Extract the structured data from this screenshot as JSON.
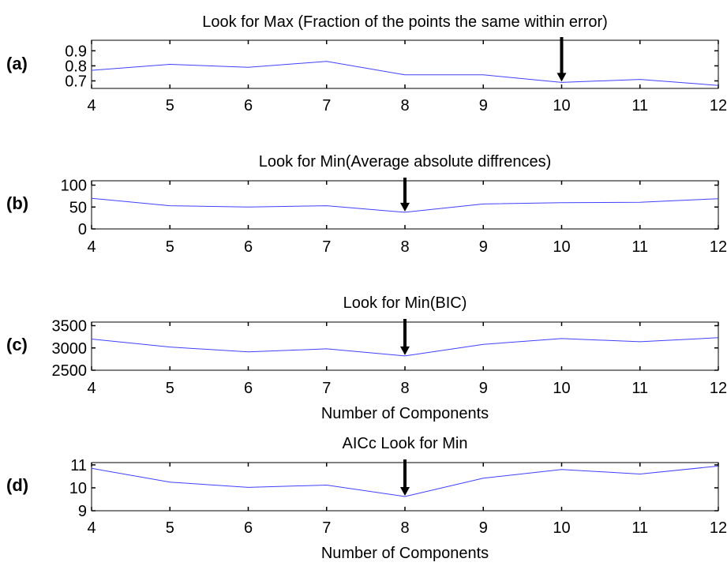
{
  "colors": {
    "line": "#4040ff",
    "axis": "#000000",
    "arrow": "#000000"
  },
  "chart_data": [
    {
      "panel_label": "(a)",
      "type": "line",
      "title": "Look for Max (Fraction of the points the same within error)",
      "xlabel": "",
      "ylabel": "",
      "x": [
        4,
        5,
        6,
        7,
        8,
        9,
        10,
        11,
        12
      ],
      "xticks": [
        "4",
        "5",
        "6",
        "7",
        "8",
        "9",
        "10",
        "11",
        "12"
      ],
      "yticks": [
        "0.7",
        "0.8",
        "0.9"
      ],
      "ytick_values": [
        0.7,
        0.8,
        0.9
      ],
      "xlim": [
        4,
        12
      ],
      "ylim": [
        0.65,
        0.97
      ],
      "series": [
        {
          "values": [
            0.77,
            0.81,
            0.79,
            0.83,
            0.74,
            0.74,
            0.69,
            0.71,
            0.67
          ]
        }
      ],
      "annotation": {
        "type": "arrow",
        "x": 10,
        "points_to_value": 0.69
      }
    },
    {
      "panel_label": "(b)",
      "type": "line",
      "title": "Look for Min(Average absolute diffrences)",
      "xlabel": "",
      "ylabel": "",
      "x": [
        4,
        5,
        6,
        7,
        8,
        9,
        10,
        11,
        12
      ],
      "xticks": [
        "4",
        "5",
        "6",
        "7",
        "8",
        "9",
        "10",
        "11",
        "12"
      ],
      "yticks": [
        "0",
        "50",
        "100"
      ],
      "ytick_values": [
        0,
        50,
        100
      ],
      "xlim": [
        4,
        12
      ],
      "ylim": [
        0,
        110
      ],
      "series": [
        {
          "values": [
            70,
            53,
            50,
            53,
            38,
            57,
            60,
            61,
            69
          ]
        }
      ],
      "annotation": {
        "type": "arrow",
        "x": 8,
        "points_to_value": 38
      }
    },
    {
      "panel_label": "(c)",
      "type": "line",
      "title": "Look for Min(BIC)",
      "xlabel": "Number of Components",
      "ylabel": "",
      "x": [
        4,
        5,
        6,
        7,
        8,
        9,
        10,
        11,
        12
      ],
      "xticks": [
        "4",
        "5",
        "6",
        "7",
        "8",
        "9",
        "10",
        "11",
        "12"
      ],
      "yticks": [
        "2500",
        "3000",
        "3500"
      ],
      "ytick_values": [
        2500,
        3000,
        3500
      ],
      "xlim": [
        4,
        12
      ],
      "ylim": [
        2500,
        3580
      ],
      "series": [
        {
          "values": [
            3200,
            3020,
            2910,
            2980,
            2820,
            3080,
            3210,
            3140,
            3230
          ]
        }
      ],
      "annotation": {
        "type": "arrow",
        "x": 8,
        "points_to_value": 2820
      }
    },
    {
      "panel_label": "(d)",
      "type": "line",
      "title": "AICc Look for Min",
      "xlabel": "Number of Components",
      "ylabel": "",
      "x": [
        4,
        5,
        6,
        7,
        8,
        9,
        10,
        11,
        12
      ],
      "xticks": [
        "4",
        "5",
        "6",
        "7",
        "8",
        "9",
        "10",
        "11",
        "12"
      ],
      "yticks": [
        "9",
        "10",
        "11"
      ],
      "ytick_values": [
        9,
        10,
        11
      ],
      "xlim": [
        4,
        12
      ],
      "ylim": [
        9,
        11.1
      ],
      "series": [
        {
          "values": [
            10.85,
            10.25,
            10.02,
            10.12,
            9.62,
            10.42,
            10.8,
            10.6,
            10.95
          ]
        }
      ],
      "annotation": {
        "type": "arrow",
        "x": 8,
        "points_to_value": 9.62
      }
    }
  ]
}
